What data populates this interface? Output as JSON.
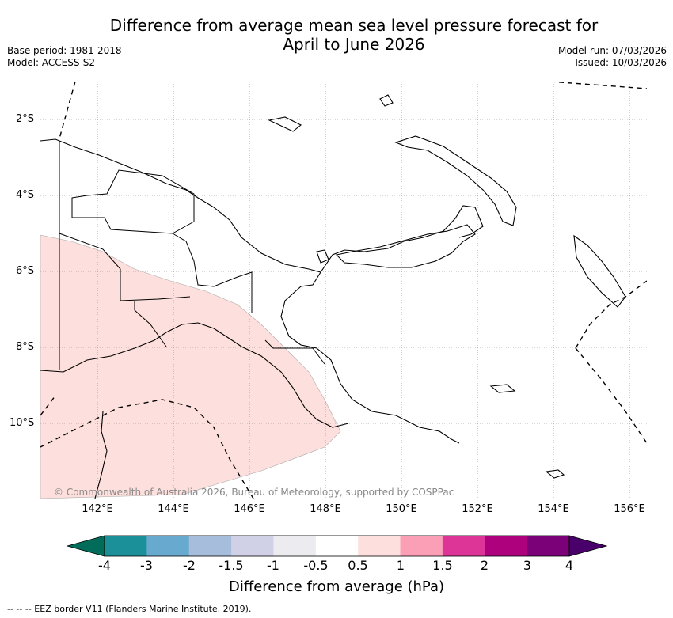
{
  "title_line1": "Difference from average mean sea level pressure forecast for",
  "title_line2": "April to June 2026",
  "meta": {
    "base_period": "Base period: 1981-2018",
    "model": "Model: ACCESS-S2",
    "model_run": "Model run: 07/03/2026",
    "issued": "Issued: 10/03/2026"
  },
  "lat_labels": [
    "2°S",
    "4°S",
    "6°S",
    "8°S",
    "10°S"
  ],
  "lon_labels": [
    "142°E",
    "144°E",
    "146°E",
    "148°E",
    "150°E",
    "152°E",
    "154°E",
    "156°E"
  ],
  "copyright": "© Commonwealth of Australia 2026, Bureau of Meteorology, supported by COSPPac",
  "colorbar": {
    "labels": [
      "-4",
      "-3",
      "-2",
      "-1.5",
      "-1",
      "-0.5",
      "0.5",
      "1",
      "1.5",
      "2",
      "3",
      "4"
    ],
    "colors": [
      "#1c9099",
      "#67a9cf",
      "#a6bddb",
      "#d0d1e6",
      "#ecebf0",
      "#ffffff",
      "#fde0dd",
      "#fa9fb5",
      "#dd3497",
      "#ae017e",
      "#7a0177"
    ],
    "low_color": "#016c59",
    "high_color": "#49006a",
    "title": "Difference from average (hPa)"
  },
  "positive_anomaly_color": "#fde0dd",
  "footer": "--  --  -- EEZ border V11 (Flanders Marine Institute, 2019)."
}
